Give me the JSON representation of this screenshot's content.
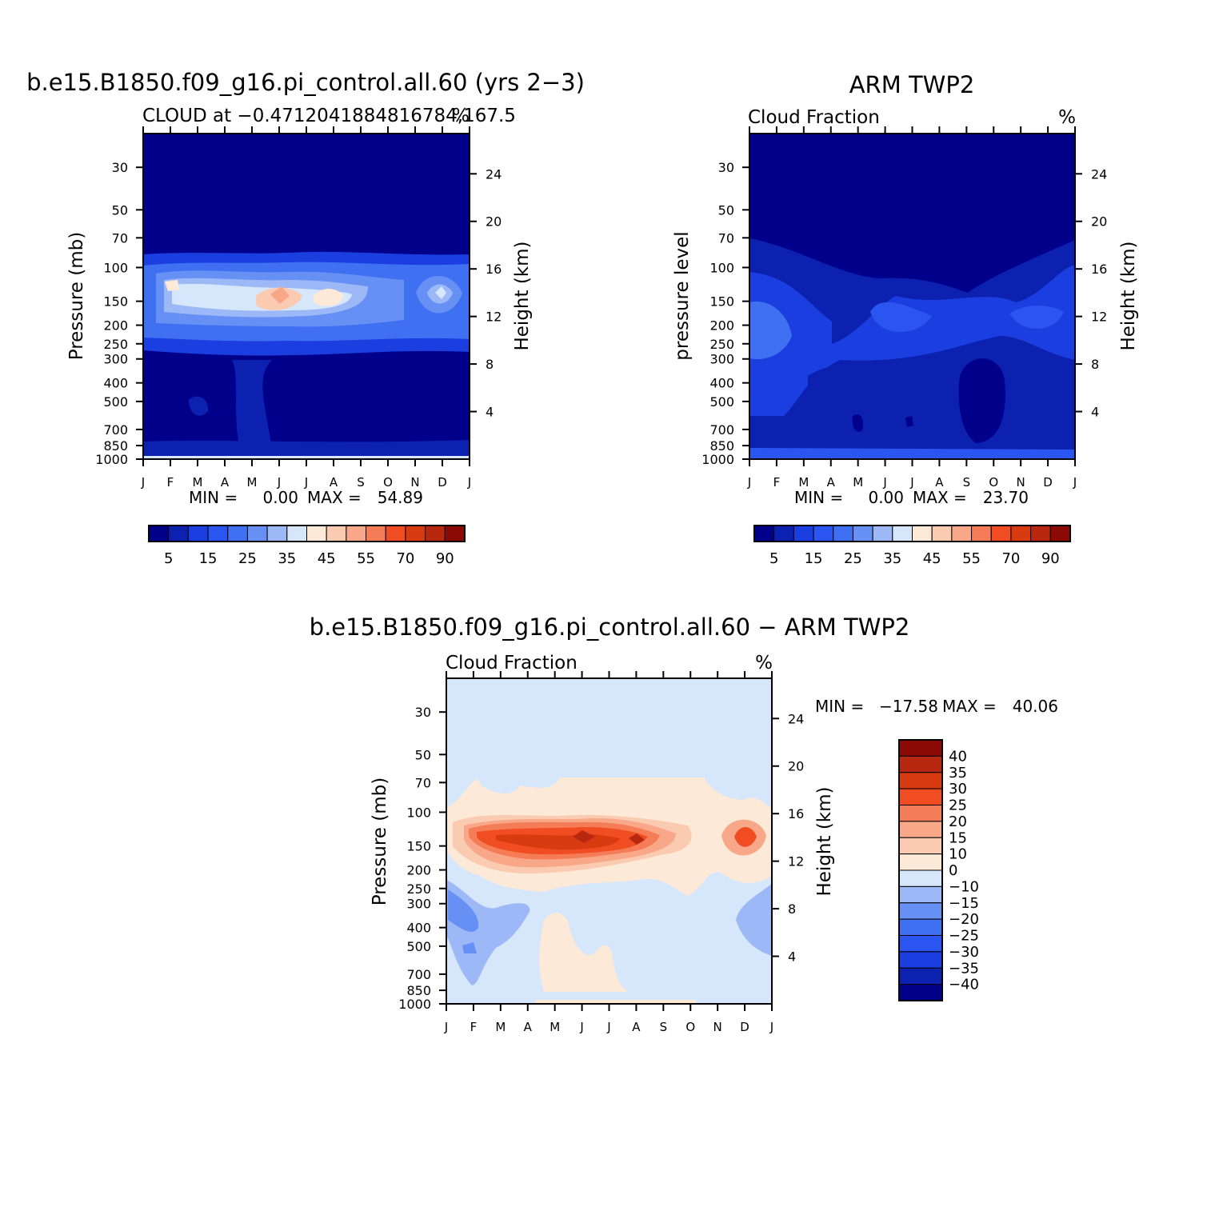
{
  "palette": {
    "abs": [
      "#00008b",
      "#0d21b0",
      "#1a3ee0",
      "#2b55f0",
      "#3f70f2",
      "#6790f4",
      "#9cb8f7",
      "#d6e6fb",
      "#fde9d7",
      "#fbcbb1",
      "#f8a889",
      "#f47c56",
      "#f04d23",
      "#d93b11",
      "#b82710",
      "#8b0a05"
    ],
    "diff": [
      "#00008b",
      "#0d21b0",
      "#1a3ee0",
      "#2b55f0",
      "#3f70f2",
      "#6790f4",
      "#9cb8f7",
      "#d6e6fb",
      "#fde9d7",
      "#fbcbb1",
      "#f8a889",
      "#f47c56",
      "#f04d23",
      "#d93b11",
      "#b82710",
      "#8b0a05"
    ],
    "line": "#000000",
    "background": "#ffffff"
  },
  "chart_data": [
    {
      "type": "heatmap",
      "panel": "model",
      "title": "b.e15.B1850.f09_g16.pi_control.all.60 (yrs 2−3)",
      "subtitle_left": "CLOUD at −0.4712041884816784,167.5",
      "subtitle_right": "%",
      "xlabel": "",
      "ylabel": "Pressure (mb)",
      "ylabel_right": "Height (km)",
      "x_ticks": [
        "J",
        "F",
        "M",
        "A",
        "M",
        "J",
        "J",
        "A",
        "S",
        "O",
        "N",
        "D",
        "J"
      ],
      "y_ticks": [
        30,
        50,
        70,
        100,
        150,
        200,
        250,
        300,
        400,
        500,
        700,
        850,
        1000
      ],
      "height_ticks": [
        24,
        20,
        16,
        12,
        8,
        4
      ],
      "ylim": [
        1000,
        20
      ],
      "levels": [
        5,
        10,
        15,
        20,
        25,
        30,
        35,
        40,
        45,
        50,
        55,
        60,
        70,
        80,
        90
      ],
      "colorbar_labels": [
        "5",
        "15",
        "25",
        "35",
        "45",
        "55",
        "70",
        "90"
      ],
      "min_label": "MIN =",
      "min_value": "0.00",
      "max_label": "MAX =",
      "max_value": "54.89",
      "cloud_layer": {
        "months": [
          "J",
          "F",
          "M",
          "A",
          "M",
          "J",
          "J",
          "A",
          "S",
          "O",
          "N",
          "D",
          "J"
        ],
        "peak_percent": [
          18,
          40,
          38,
          34,
          36,
          50,
          38,
          46,
          24,
          26,
          18,
          40,
          18
        ]
      }
    },
    {
      "type": "heatmap",
      "panel": "obs",
      "title": "ARM TWP2",
      "subtitle_left": "Cloud Fraction",
      "subtitle_right": "%",
      "xlabel": "",
      "ylabel": "pressure level",
      "ylabel_right": "Height (km)",
      "x_ticks": [
        "J",
        "F",
        "M",
        "A",
        "M",
        "J",
        "J",
        "A",
        "S",
        "O",
        "N",
        "D",
        "J"
      ],
      "y_ticks": [
        30,
        50,
        70,
        100,
        150,
        200,
        250,
        300,
        400,
        500,
        700,
        850,
        1000
      ],
      "height_ticks": [
        24,
        20,
        16,
        12,
        8,
        4
      ],
      "ylim": [
        1000,
        20
      ],
      "levels": [
        5,
        10,
        15,
        20,
        25,
        30,
        35,
        40,
        45,
        50,
        55,
        60,
        70,
        80,
        90
      ],
      "colorbar_labels": [
        "5",
        "15",
        "25",
        "35",
        "45",
        "55",
        "70",
        "90"
      ],
      "min_label": "MIN =",
      "min_value": "0.00",
      "max_label": "MAX =",
      "max_value": "23.70"
    },
    {
      "type": "heatmap",
      "panel": "difference",
      "title": "b.e15.B1850.f09_g16.pi_control.all.60 − ARM TWP2",
      "subtitle_left": "Cloud Fraction",
      "subtitle_right": "%",
      "xlabel": "",
      "ylabel": "Pressure (mb)",
      "ylabel_right": "Height (km)",
      "x_ticks": [
        "J",
        "F",
        "M",
        "A",
        "M",
        "J",
        "J",
        "A",
        "S",
        "O",
        "N",
        "D",
        "J"
      ],
      "y_ticks": [
        30,
        50,
        70,
        100,
        150,
        200,
        250,
        300,
        400,
        500,
        700,
        850,
        1000
      ],
      "height_ticks": [
        24,
        20,
        16,
        12,
        8,
        4
      ],
      "ylim": [
        1000,
        20
      ],
      "levels": [
        -40,
        -35,
        -30,
        -25,
        -20,
        -15,
        -10,
        0,
        10,
        15,
        20,
        25,
        30,
        35,
        40
      ],
      "colorbar_labels": [
        "40",
        "35",
        "30",
        "25",
        "20",
        "15",
        "10",
        "0",
        "−10",
        "−15",
        "−20",
        "−25",
        "−30",
        "−35",
        "−40"
      ],
      "min_label": "MIN =",
      "min_value": "−17.58",
      "max_label": "MAX =",
      "max_value": "40.06",
      "legend_position": "right"
    }
  ]
}
